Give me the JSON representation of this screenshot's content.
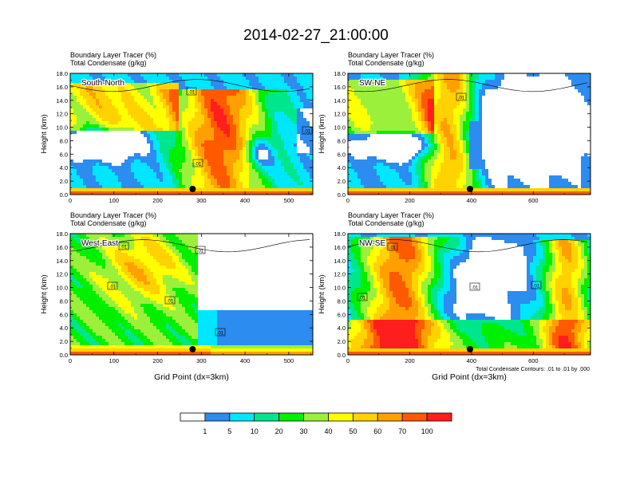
{
  "figure": {
    "title": "2014-02-27_21:00:00",
    "footnote": "Total Condensate Contours: .01 to .01 by .000"
  },
  "colors": {
    "levels": [
      "#ffffff",
      "#2c8cf0",
      "#00e6ff",
      "#00e68c",
      "#00f000",
      "#9bf03c",
      "#ffff00",
      "#ffd200",
      "#ffa000",
      "#ff5a00",
      "#ff1e1e"
    ]
  },
  "colorbar": {
    "labels": [
      "1",
      "5",
      "10",
      "20",
      "30",
      "40",
      "50",
      "60",
      "70",
      "100"
    ]
  },
  "chart_data": [
    {
      "type": "heatmap",
      "label": "South-North",
      "subtitle1": "Boundary Layer Tracer   (%)",
      "subtitle2": "Total Condensate   (g/kg)",
      "ylabel": "Height (km)",
      "xlabel": "",
      "xlim": [
        0,
        555
      ],
      "ylim": [
        0,
        18
      ],
      "xticks": [
        "0",
        "100",
        "200",
        "300",
        "400",
        "500"
      ],
      "yticks": [
        "0.0",
        "2.0",
        "4.0",
        "6.0",
        "8.0",
        "10.0",
        "12.0",
        "14.0",
        "16.0",
        "18.0"
      ],
      "marker_x": 280,
      "contour_labels": [
        ".01",
        ".01",
        ".01"
      ]
    },
    {
      "type": "heatmap",
      "label": "SW-NE",
      "subtitle1": "Boundary Layer Tracer   (%)",
      "subtitle2": "Total Condensate   (g/kg)",
      "ylabel": "Height (km)",
      "xlabel": "",
      "xlim": [
        0,
        785
      ],
      "ylim": [
        0,
        18
      ],
      "xticks": [
        "0",
        "200",
        "400",
        "600"
      ],
      "yticks": [
        "0.0",
        "2.0",
        "4.0",
        "6.0",
        "8.0",
        "10.0",
        "12.0",
        "14.0",
        "16.0",
        "18.0"
      ],
      "marker_x": 395,
      "contour_labels": [
        ".01"
      ]
    },
    {
      "type": "heatmap",
      "label": "West-East",
      "subtitle1": "Boundary Layer Tracer   (%)",
      "subtitle2": "Total Condensate   (g/kg)",
      "ylabel": "Height (km)",
      "xlabel": "Grid Point (dx=3km)",
      "xlim": [
        0,
        555
      ],
      "ylim": [
        0,
        18
      ],
      "xticks": [
        "0",
        "100",
        "200",
        "300",
        "400",
        "500"
      ],
      "yticks": [
        "0.0",
        "2.0",
        "4.0",
        "6.0",
        "8.0",
        "10.0",
        "12.0",
        "14.0",
        "16.0",
        "18.0"
      ],
      "marker_x": 280,
      "contour_labels": [
        ".01",
        ".01",
        ".01",
        ".01",
        ".01"
      ]
    },
    {
      "type": "heatmap",
      "label": "NW-SE",
      "subtitle1": "Boundary Layer Tracer   (%)",
      "subtitle2": "Total Condensate   (g/kg)",
      "ylabel": "Height (km)",
      "xlabel": "Grid Point (dx=3km)",
      "xlim": [
        0,
        785
      ],
      "ylim": [
        0,
        18
      ],
      "xticks": [
        "0",
        "200",
        "400",
        "600"
      ],
      "yticks": [
        "0.0",
        "2.0",
        "4.0",
        "6.0",
        "8.0",
        "10.0",
        "12.0",
        "14.0",
        "16.0",
        "18.0"
      ],
      "marker_x": 395,
      "contour_labels": [
        ".01",
        ".01",
        ".01",
        ".01"
      ]
    }
  ]
}
